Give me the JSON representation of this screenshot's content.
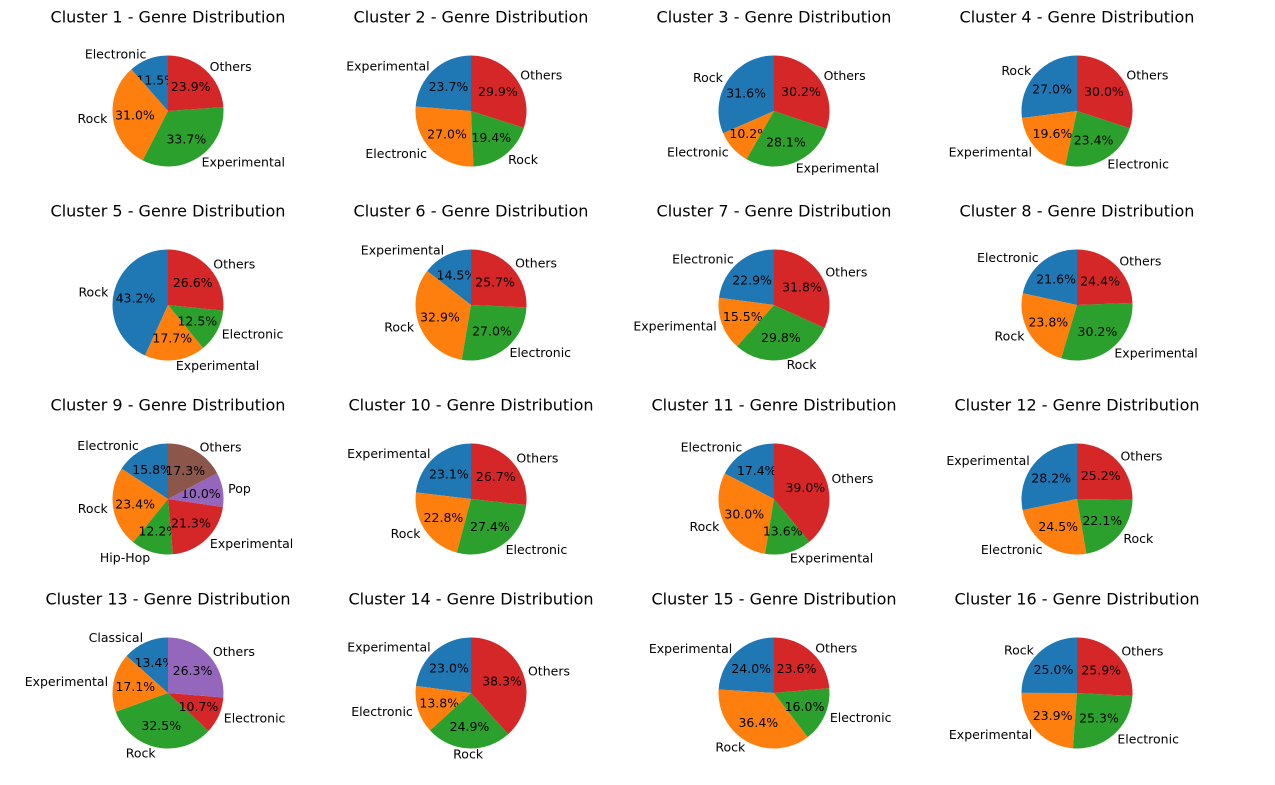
{
  "chart_data": [
    {
      "type": "pie",
      "title": "Cluster 1 - Genre Distribution",
      "slices": [
        {
          "label": "Electronic",
          "value": 11.5,
          "pct": "11.5%",
          "color": "#1f77b4"
        },
        {
          "label": "Rock",
          "value": 31.0,
          "pct": "31.0%",
          "color": "#ff7f0e"
        },
        {
          "label": "Experimental",
          "value": 33.7,
          "pct": "33.7%",
          "color": "#2ca02c"
        },
        {
          "label": "Others",
          "value": 23.9,
          "pct": "23.9%",
          "color": "#d62728"
        }
      ]
    },
    {
      "type": "pie",
      "title": "Cluster 2 - Genre Distribution",
      "slices": [
        {
          "label": "Experimental",
          "value": 23.7,
          "pct": "23.7%",
          "color": "#1f77b4"
        },
        {
          "label": "Electronic",
          "value": 27.0,
          "pct": "27.0%",
          "color": "#ff7f0e"
        },
        {
          "label": "Rock",
          "value": 19.4,
          "pct": "19.4%",
          "color": "#2ca02c"
        },
        {
          "label": "Others",
          "value": 29.9,
          "pct": "29.9%",
          "color": "#d62728"
        }
      ]
    },
    {
      "type": "pie",
      "title": "Cluster 3 - Genre Distribution",
      "slices": [
        {
          "label": "Rock",
          "value": 31.6,
          "pct": "31.6%",
          "color": "#1f77b4"
        },
        {
          "label": "Electronic",
          "value": 10.2,
          "pct": "10.2%",
          "color": "#ff7f0e"
        },
        {
          "label": "Experimental",
          "value": 28.1,
          "pct": "28.1%",
          "color": "#2ca02c"
        },
        {
          "label": "Others",
          "value": 30.2,
          "pct": "30.2%",
          "color": "#d62728"
        }
      ]
    },
    {
      "type": "pie",
      "title": "Cluster 4 - Genre Distribution",
      "slices": [
        {
          "label": "Rock",
          "value": 27.0,
          "pct": "27.0%",
          "color": "#1f77b4"
        },
        {
          "label": "Experimental",
          "value": 19.6,
          "pct": "19.6%",
          "color": "#ff7f0e"
        },
        {
          "label": "Electronic",
          "value": 23.4,
          "pct": "23.4%",
          "color": "#2ca02c"
        },
        {
          "label": "Others",
          "value": 30.0,
          "pct": "30.0%",
          "color": "#d62728"
        }
      ]
    },
    {
      "type": "pie",
      "title": "Cluster 5 - Genre Distribution",
      "slices": [
        {
          "label": "Rock",
          "value": 43.2,
          "pct": "43.2%",
          "color": "#1f77b4"
        },
        {
          "label": "Experimental",
          "value": 17.7,
          "pct": "17.7%",
          "color": "#ff7f0e"
        },
        {
          "label": "Electronic",
          "value": 12.5,
          "pct": "12.5%",
          "color": "#2ca02c"
        },
        {
          "label": "Others",
          "value": 26.6,
          "pct": "26.6%",
          "color": "#d62728"
        }
      ]
    },
    {
      "type": "pie",
      "title": "Cluster 6 - Genre Distribution",
      "slices": [
        {
          "label": "Experimental",
          "value": 14.5,
          "pct": "14.5%",
          "color": "#1f77b4"
        },
        {
          "label": "Rock",
          "value": 32.9,
          "pct": "32.9%",
          "color": "#ff7f0e"
        },
        {
          "label": "Electronic",
          "value": 27.0,
          "pct": "27.0%",
          "color": "#2ca02c"
        },
        {
          "label": "Others",
          "value": 25.7,
          "pct": "25.7%",
          "color": "#d62728"
        }
      ]
    },
    {
      "type": "pie",
      "title": "Cluster 7 - Genre Distribution",
      "slices": [
        {
          "label": "Electronic",
          "value": 22.9,
          "pct": "22.9%",
          "color": "#1f77b4"
        },
        {
          "label": "Experimental",
          "value": 15.5,
          "pct": "15.5%",
          "color": "#ff7f0e"
        },
        {
          "label": "Rock",
          "value": 29.8,
          "pct": "29.8%",
          "color": "#2ca02c"
        },
        {
          "label": "Others",
          "value": 31.8,
          "pct": "31.8%",
          "color": "#d62728"
        }
      ]
    },
    {
      "type": "pie",
      "title": "Cluster 8 - Genre Distribution",
      "slices": [
        {
          "label": "Electronic",
          "value": 21.6,
          "pct": "21.6%",
          "color": "#1f77b4"
        },
        {
          "label": "Rock",
          "value": 23.8,
          "pct": "23.8%",
          "color": "#ff7f0e"
        },
        {
          "label": "Experimental",
          "value": 30.2,
          "pct": "30.2%",
          "color": "#2ca02c"
        },
        {
          "label": "Others",
          "value": 24.4,
          "pct": "24.4%",
          "color": "#d62728"
        }
      ]
    },
    {
      "type": "pie",
      "title": "Cluster 9 - Genre Distribution",
      "slices": [
        {
          "label": "Electronic",
          "value": 15.8,
          "pct": "15.8%",
          "color": "#1f77b4"
        },
        {
          "label": "Rock",
          "value": 23.4,
          "pct": "23.4%",
          "color": "#ff7f0e"
        },
        {
          "label": "Hip-Hop",
          "value": 12.2,
          "pct": "12.2%",
          "color": "#2ca02c"
        },
        {
          "label": "Experimental",
          "value": 21.3,
          "pct": "21.3%",
          "color": "#d62728"
        },
        {
          "label": "Pop",
          "value": 10.0,
          "pct": "10.0%",
          "color": "#9467bd"
        },
        {
          "label": "Others",
          "value": 17.3,
          "pct": "17.3%",
          "color": "#8c564b"
        }
      ]
    },
    {
      "type": "pie",
      "title": "Cluster 10 - Genre Distribution",
      "slices": [
        {
          "label": "Experimental",
          "value": 23.1,
          "pct": "23.1%",
          "color": "#1f77b4"
        },
        {
          "label": "Rock",
          "value": 22.8,
          "pct": "22.8%",
          "color": "#ff7f0e"
        },
        {
          "label": "Electronic",
          "value": 27.4,
          "pct": "27.4%",
          "color": "#2ca02c"
        },
        {
          "label": "Others",
          "value": 26.7,
          "pct": "26.7%",
          "color": "#d62728"
        }
      ]
    },
    {
      "type": "pie",
      "title": "Cluster 11 - Genre Distribution",
      "slices": [
        {
          "label": "Electronic",
          "value": 17.4,
          "pct": "17.4%",
          "color": "#1f77b4"
        },
        {
          "label": "Rock",
          "value": 30.0,
          "pct": "30.0%",
          "color": "#ff7f0e"
        },
        {
          "label": "Experimental",
          "value": 13.6,
          "pct": "13.6%",
          "color": "#2ca02c"
        },
        {
          "label": "Others",
          "value": 39.0,
          "pct": "39.0%",
          "color": "#d62728"
        }
      ]
    },
    {
      "type": "pie",
      "title": "Cluster 12 - Genre Distribution",
      "slices": [
        {
          "label": "Experimental",
          "value": 28.2,
          "pct": "28.2%",
          "color": "#1f77b4"
        },
        {
          "label": "Electronic",
          "value": 24.5,
          "pct": "24.5%",
          "color": "#ff7f0e"
        },
        {
          "label": "Rock",
          "value": 22.1,
          "pct": "22.1%",
          "color": "#2ca02c"
        },
        {
          "label": "Others",
          "value": 25.2,
          "pct": "25.2%",
          "color": "#d62728"
        }
      ]
    },
    {
      "type": "pie",
      "title": "Cluster 13 - Genre Distribution",
      "slices": [
        {
          "label": "Classical",
          "value": 13.4,
          "pct": "13.4%",
          "color": "#1f77b4"
        },
        {
          "label": "Experimental",
          "value": 17.1,
          "pct": "17.1%",
          "color": "#ff7f0e"
        },
        {
          "label": "Rock",
          "value": 32.5,
          "pct": "32.5%",
          "color": "#2ca02c"
        },
        {
          "label": "Electronic",
          "value": 10.7,
          "pct": "10.7%",
          "color": "#d62728"
        },
        {
          "label": "Others",
          "value": 26.3,
          "pct": "26.3%",
          "color": "#9467bd"
        }
      ]
    },
    {
      "type": "pie",
      "title": "Cluster 14 - Genre Distribution",
      "slices": [
        {
          "label": "Experimental",
          "value": 23.0,
          "pct": "23.0%",
          "color": "#1f77b4"
        },
        {
          "label": "Electronic",
          "value": 13.8,
          "pct": "13.8%",
          "color": "#ff7f0e"
        },
        {
          "label": "Rock",
          "value": 24.9,
          "pct": "24.9%",
          "color": "#2ca02c"
        },
        {
          "label": "Others",
          "value": 38.3,
          "pct": "38.3%",
          "color": "#d62728"
        }
      ]
    },
    {
      "type": "pie",
      "title": "Cluster 15 - Genre Distribution",
      "slices": [
        {
          "label": "Experimental",
          "value": 24.0,
          "pct": "24.0%",
          "color": "#1f77b4"
        },
        {
          "label": "Rock",
          "value": 36.4,
          "pct": "36.4%",
          "color": "#ff7f0e"
        },
        {
          "label": "Electronic",
          "value": 16.0,
          "pct": "16.0%",
          "color": "#2ca02c"
        },
        {
          "label": "Others",
          "value": 23.6,
          "pct": "23.6%",
          "color": "#d62728"
        }
      ]
    },
    {
      "type": "pie",
      "title": "Cluster 16 - Genre Distribution",
      "slices": [
        {
          "label": "Rock",
          "value": 25.0,
          "pct": "25.0%",
          "color": "#1f77b4"
        },
        {
          "label": "Experimental",
          "value": 23.9,
          "pct": "23.9%",
          "color": "#ff7f0e"
        },
        {
          "label": "Electronic",
          "value": 25.3,
          "pct": "25.3%",
          "color": "#2ca02c"
        },
        {
          "label": "Others",
          "value": 25.9,
          "pct": "25.9%",
          "color": "#d62728"
        }
      ]
    }
  ]
}
